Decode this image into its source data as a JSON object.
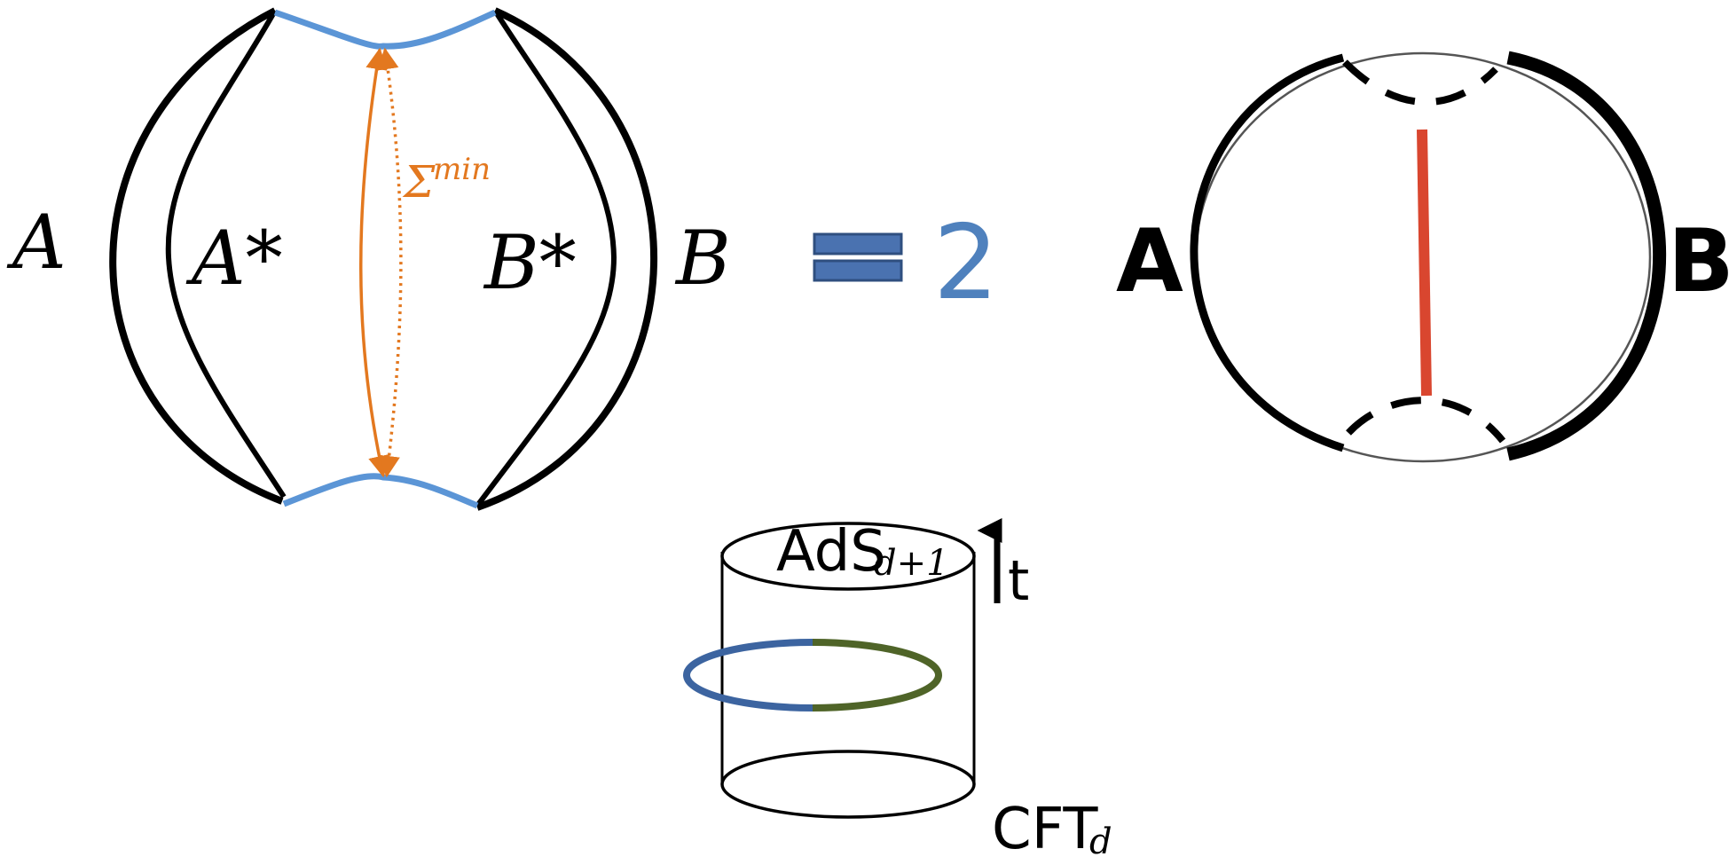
{
  "left_diagram": {
    "label_A": "A",
    "label_A_star": "A*",
    "label_B_star": "B*",
    "label_B": "B",
    "sigma_symbol": "Σ",
    "sigma_superscript": "min"
  },
  "equation": {
    "equals_symbol": "=",
    "value": "2"
  },
  "right_diagram": {
    "label_A": "A",
    "label_B": "B"
  },
  "cylinder": {
    "top_label": "AdS",
    "top_label_subscript": "d+1",
    "time_label": "t",
    "bottom_label": "CFT",
    "bottom_label_subscript": "d"
  },
  "colors": {
    "boundary_blue": "#5b95d6",
    "arrow_orange": "#e3781f",
    "equals_blue": "#4a72b0",
    "two_blue": "#4f81bd",
    "red_line": "#d9462f",
    "ring_blue": "#3c64a0",
    "ring_green": "#4f6428"
  }
}
